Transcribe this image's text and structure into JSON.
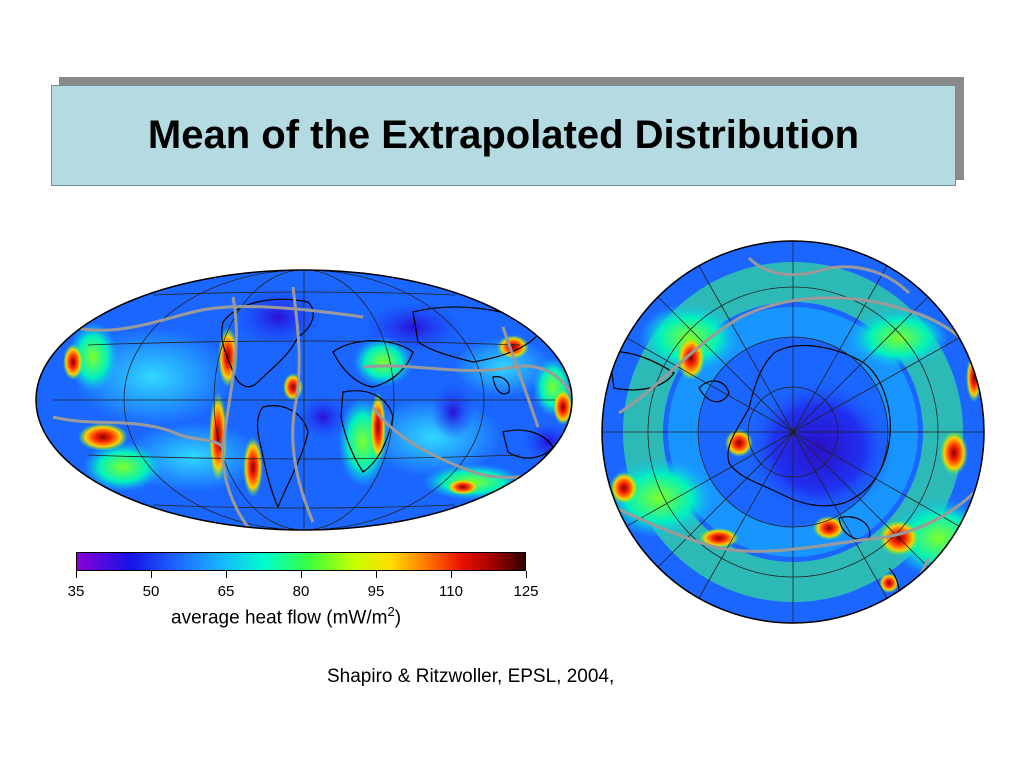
{
  "slide": {
    "title": "Mean of the Extrapolated Distribution",
    "citation": "Shapiro & Ritzwoller, EPSL, 2004,"
  },
  "colorbar": {
    "ticks": [
      "35",
      "50",
      "65",
      "80",
      "95",
      "110",
      "125"
    ],
    "label_main": "average heat flow (mW/m",
    "label_sup": "2",
    "label_end": ")",
    "range": [
      35,
      125
    ]
  },
  "maps": {
    "global": {
      "projection": "Hammer/Mollweide world map",
      "base_color": "#1a66ff"
    },
    "polar": {
      "projection": "South polar stereographic",
      "base_color": "#1a66ff"
    }
  },
  "colors": {
    "title_bg": "#b3dbe1",
    "plate_boundary": "#9a9a9a",
    "low_heat": "#1414e6",
    "high_heat": "#a00000"
  }
}
